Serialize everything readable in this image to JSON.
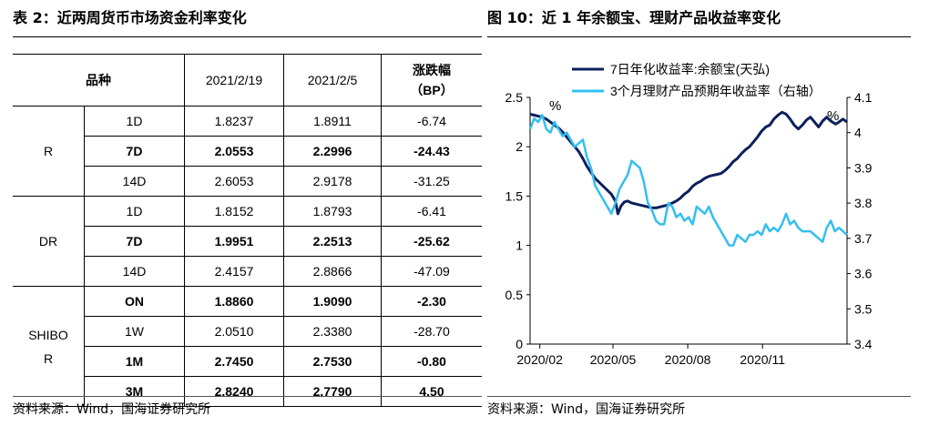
{
  "left": {
    "title": "表 2：近两周货币市场资金利率变化",
    "source": "资料来源：Wind，国海证券研究所",
    "table": {
      "headers": {
        "variety": "品种",
        "date1": "2021/2/19",
        "date2": "2021/2/5",
        "change_line1": "涨跌幅",
        "change_line2": "（BP）"
      },
      "groups": [
        {
          "name": "R",
          "name_lines": [
            "R"
          ],
          "rows": [
            {
              "term": "1D",
              "v1": "1.8237",
              "v2": "1.8911",
              "chg": "-6.74",
              "bold": false
            },
            {
              "term": "7D",
              "v1": "2.0553",
              "v2": "2.2996",
              "chg": "-24.43",
              "bold": true
            },
            {
              "term": "14D",
              "v1": "2.6053",
              "v2": "2.9178",
              "chg": "-31.25",
              "bold": false
            }
          ]
        },
        {
          "name": "DR",
          "name_lines": [
            "DR"
          ],
          "rows": [
            {
              "term": "1D",
              "v1": "1.8152",
              "v2": "1.8793",
              "chg": "-6.41",
              "bold": false
            },
            {
              "term": "7D",
              "v1": "1.9951",
              "v2": "2.2513",
              "chg": "-25.62",
              "bold": true
            },
            {
              "term": "14D",
              "v1": "2.4157",
              "v2": "2.8866",
              "chg": "-47.09",
              "bold": false
            }
          ]
        },
        {
          "name": "SHIBOR",
          "name_lines": [
            "SHIBO",
            "R"
          ],
          "rows": [
            {
              "term": "ON",
              "v1": "1.8860",
              "v2": "1.9090",
              "chg": "-2.30",
              "bold": true
            },
            {
              "term": "1W",
              "v1": "2.0510",
              "v2": "2.3380",
              "chg": "-28.70",
              "bold": false
            },
            {
              "term": "1M",
              "v1": "2.7450",
              "v2": "2.7530",
              "chg": "-0.80",
              "bold": true
            },
            {
              "term": "3M",
              "v1": "2.8240",
              "v2": "2.7790",
              "chg": "4.50",
              "bold": true
            }
          ]
        }
      ]
    }
  },
  "right": {
    "title": "图 10：近 1 年余额宝、理财产品收益率变化",
    "source": "资料来源：Wind，国海证券研究所"
  },
  "chart_data": {
    "type": "line",
    "title": "",
    "x_ticks": [
      "2020/02",
      "2020/05",
      "2020/08",
      "2020/11"
    ],
    "x_range": [
      "2020/01/20",
      "2021/02/19"
    ],
    "y_left": {
      "ticks": [
        "0",
        "0.5",
        "1",
        "1.5",
        "2",
        "2.5"
      ],
      "range": [
        0,
        2.5
      ],
      "unit_label": "%"
    },
    "y_right": {
      "ticks": [
        "3.4",
        "3.5",
        "3.6",
        "3.7",
        "3.8",
        "3.9",
        "4",
        "4.1"
      ],
      "range": [
        3.4,
        4.1
      ],
      "unit_label": "%"
    },
    "legend_position": "top",
    "series": [
      {
        "name": "7日年化收益率:余额宝(天弘)",
        "axis": "left",
        "color": "#0d1f5c",
        "x": [
          0,
          5,
          10,
          15,
          20,
          25,
          30,
          35,
          40,
          45,
          50,
          55,
          60,
          65,
          70,
          75,
          80,
          85,
          90,
          95,
          100,
          105,
          108,
          112,
          116,
          120,
          125,
          130,
          135,
          140,
          145,
          150,
          155,
          160,
          165,
          170,
          175,
          180,
          185,
          190,
          195,
          200,
          205,
          210,
          215,
          220,
          225,
          230,
          235,
          240,
          245,
          250,
          255,
          260,
          265,
          270,
          275,
          280,
          285,
          290,
          295,
          300,
          305,
          310,
          315,
          320,
          325,
          330,
          335,
          340,
          345,
          350,
          355,
          360,
          365,
          370,
          376,
          380,
          385,
          390
        ],
        "values": [
          2.33,
          2.32,
          2.31,
          2.3,
          2.28,
          2.25,
          2.22,
          2.19,
          2.15,
          2.1,
          2.05,
          2.0,
          1.95,
          1.88,
          1.8,
          1.74,
          1.68,
          1.64,
          1.6,
          1.56,
          1.52,
          1.45,
          1.32,
          1.4,
          1.44,
          1.45,
          1.43,
          1.42,
          1.41,
          1.4,
          1.39,
          1.38,
          1.38,
          1.39,
          1.4,
          1.41,
          1.43,
          1.45,
          1.48,
          1.52,
          1.55,
          1.6,
          1.63,
          1.65,
          1.68,
          1.7,
          1.71,
          1.72,
          1.73,
          1.76,
          1.8,
          1.85,
          1.88,
          1.93,
          1.97,
          2.0,
          2.05,
          2.1,
          2.16,
          2.2,
          2.22,
          2.28,
          2.32,
          2.35,
          2.33,
          2.28,
          2.22,
          2.18,
          2.22,
          2.27,
          2.3,
          2.25,
          2.2,
          2.26,
          2.3,
          2.26,
          2.23,
          2.25,
          2.28,
          2.25
        ]
      },
      {
        "name": "3个月理财产品预期年收益率（右轴）",
        "axis": "right",
        "color": "#33bfef",
        "x": [
          0,
          5,
          10,
          15,
          20,
          25,
          30,
          35,
          40,
          45,
          50,
          55,
          60,
          65,
          70,
          75,
          80,
          85,
          90,
          95,
          100,
          105,
          110,
          115,
          120,
          125,
          130,
          135,
          140,
          145,
          150,
          155,
          160,
          165,
          170,
          175,
          180,
          185,
          190,
          195,
          200,
          205,
          210,
          215,
          220,
          225,
          230,
          235,
          240,
          245,
          250,
          255,
          260,
          265,
          270,
          275,
          280,
          285,
          290,
          295,
          300,
          305,
          310,
          315,
          320,
          325,
          330,
          335,
          340,
          345,
          350,
          355,
          360,
          365,
          370,
          375,
          380,
          385,
          390
        ],
        "values": [
          4.01,
          4.04,
          4.03,
          4.05,
          4.01,
          4.0,
          4.03,
          4.01,
          3.99,
          4.0,
          3.98,
          3.96,
          3.97,
          3.98,
          3.93,
          3.9,
          3.85,
          3.83,
          3.81,
          3.79,
          3.77,
          3.8,
          3.84,
          3.86,
          3.88,
          3.92,
          3.91,
          3.9,
          3.86,
          3.8,
          3.78,
          3.75,
          3.74,
          3.74,
          3.8,
          3.79,
          3.76,
          3.77,
          3.75,
          3.76,
          3.74,
          3.79,
          3.78,
          3.77,
          3.79,
          3.76,
          3.74,
          3.72,
          3.7,
          3.68,
          3.68,
          3.71,
          3.7,
          3.69,
          3.71,
          3.71,
          3.72,
          3.71,
          3.74,
          3.72,
          3.73,
          3.72,
          3.74,
          3.77,
          3.74,
          3.75,
          3.73,
          3.72,
          3.72,
          3.72,
          3.71,
          3.7,
          3.69,
          3.73,
          3.75,
          3.72,
          3.73,
          3.72,
          3.71
        ]
      }
    ]
  }
}
